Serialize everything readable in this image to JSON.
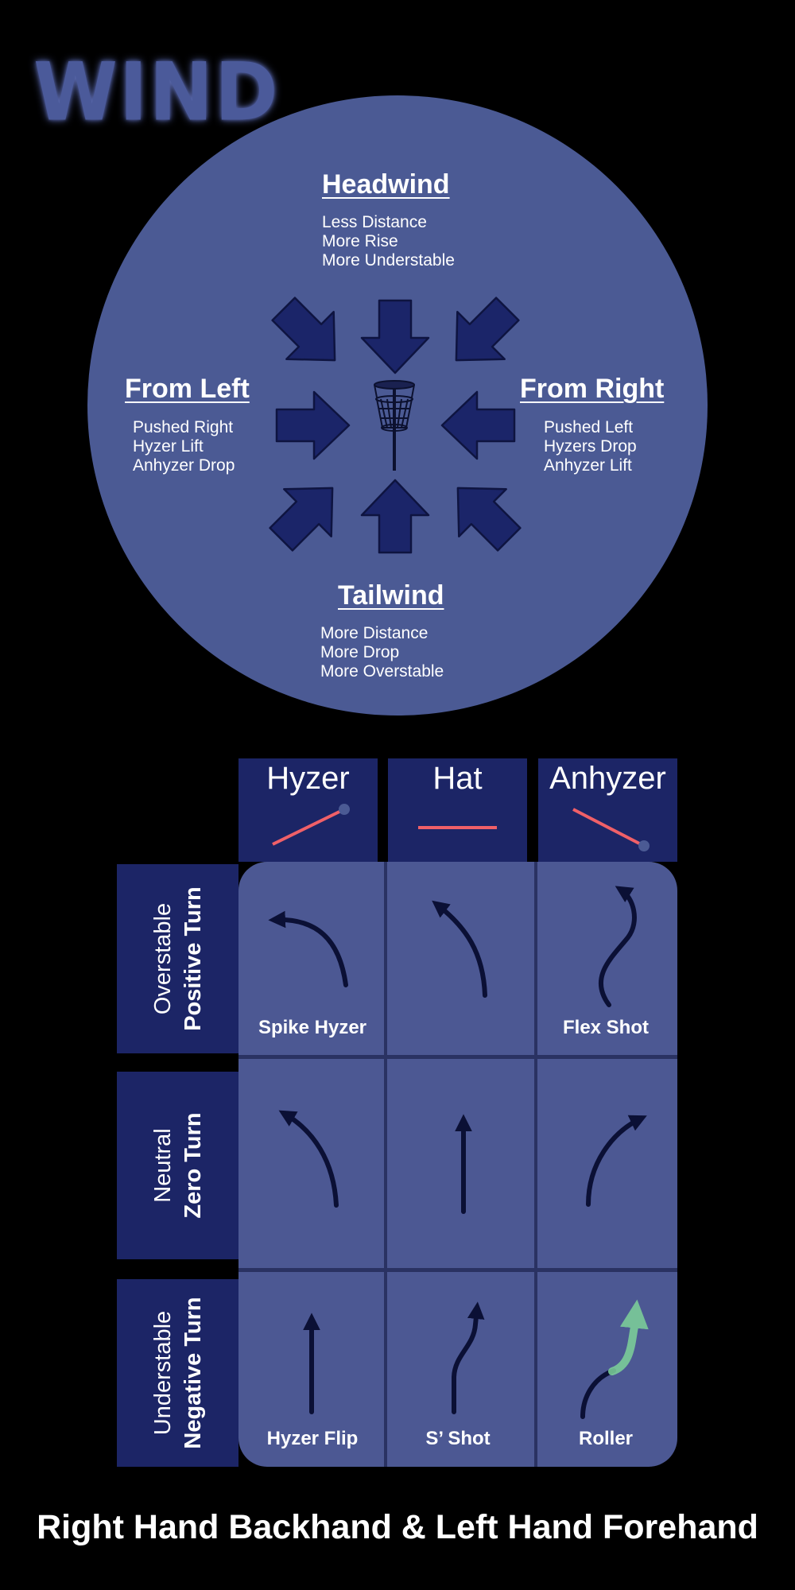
{
  "logo_text": "WIND",
  "wind": {
    "headwind": {
      "title": "Headwind",
      "effects": [
        "Less Distance",
        "More Rise",
        "More Understable"
      ]
    },
    "from_left": {
      "title": "From Left",
      "effects": [
        "Pushed Right",
        "Hyzer Lift",
        "Anhyzer Drop"
      ]
    },
    "from_right": {
      "title": "From Right",
      "effects": [
        "Pushed Left",
        "Hyzers Drop",
        "Anhyzer Lift"
      ]
    },
    "tailwind": {
      "title": "Tailwind",
      "effects": [
        "More Distance",
        "More Drop",
        "More Overstable"
      ]
    }
  },
  "colors": {
    "background": "#000000",
    "circle": "#4b5a94",
    "arrow_fill": "#1b2569",
    "header_fill": "#1c2566",
    "grid_fill": "#4c5893",
    "angle_line": "#f06068",
    "flight_path": "#0b1035",
    "roller_highlight": "#7ed39a"
  },
  "icons": {
    "wind_arrows": "arrow-icon",
    "center": "disc-golf-basket-icon"
  },
  "columns": [
    "Hyzer",
    "Hat",
    "Anhyzer"
  ],
  "rows": [
    {
      "line1": "Overstable",
      "line2": "Positive Turn"
    },
    {
      "line1": "Neutral",
      "line2": "Zero Turn"
    },
    {
      "line1": "Understable",
      "line2": "Negative Turn"
    }
  ],
  "shots": {
    "spike_hyzer": "Spike Hyzer",
    "flex_shot": "Flex Shot",
    "hyzer_flip": "Hyzer Flip",
    "s_shot": "S’ Shot",
    "roller": "Roller"
  },
  "footer": "Right Hand Backhand & Left Hand Forehand"
}
